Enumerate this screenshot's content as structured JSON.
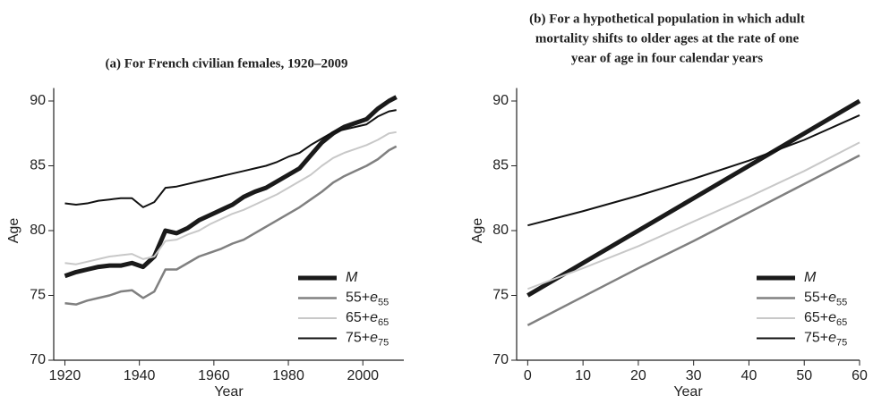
{
  "chart_data": [
    {
      "type": "line",
      "title": [
        "(a) For French civilian females, 1920–2009"
      ],
      "xlabel": "Year",
      "ylabel": "Age",
      "x": [
        1920,
        1923,
        1926,
        1929,
        1932,
        1935,
        1938,
        1941,
        1944,
        1947,
        1950,
        1953,
        1956,
        1959,
        1962,
        1965,
        1968,
        1971,
        1974,
        1977,
        1980,
        1983,
        1986,
        1989,
        1992,
        1995,
        1998,
        2001,
        2004,
        2007,
        2009
      ],
      "series": [
        {
          "name": "M",
          "color": "#1a1a1a",
          "values": [
            76.5,
            76.8,
            77.0,
            77.2,
            77.3,
            77.3,
            77.5,
            77.2,
            78.0,
            80.0,
            79.8,
            80.2,
            80.8,
            81.2,
            81.6,
            82.0,
            82.6,
            83.0,
            83.3,
            83.8,
            84.3,
            84.8,
            85.8,
            86.8,
            87.5,
            88.0,
            88.3,
            88.6,
            89.4,
            90.0,
            90.3
          ]
        },
        {
          "name": "55+e55",
          "color": "#808080",
          "values": [
            74.4,
            74.3,
            74.6,
            74.8,
            75.0,
            75.3,
            75.4,
            74.8,
            75.3,
            77.0,
            77.0,
            77.5,
            78.0,
            78.3,
            78.6,
            79.0,
            79.3,
            79.8,
            80.3,
            80.8,
            81.3,
            81.8,
            82.4,
            83.0,
            83.7,
            84.2,
            84.6,
            85.0,
            85.5,
            86.2,
            86.5
          ]
        },
        {
          "name": "65+e65",
          "color": "#c8c8c8",
          "values": [
            77.5,
            77.4,
            77.6,
            77.8,
            78.0,
            78.1,
            78.2,
            77.8,
            78.0,
            79.2,
            79.3,
            79.7,
            80.0,
            80.5,
            80.9,
            81.3,
            81.6,
            82.0,
            82.4,
            82.8,
            83.3,
            83.8,
            84.3,
            85.0,
            85.6,
            86.0,
            86.3,
            86.6,
            87.0,
            87.5,
            87.6
          ]
        },
        {
          "name": "75+e75",
          "color": "#111111",
          "values": [
            82.1,
            82.0,
            82.1,
            82.3,
            82.4,
            82.5,
            82.5,
            81.8,
            82.2,
            83.3,
            83.4,
            83.6,
            83.8,
            84.0,
            84.2,
            84.4,
            84.6,
            84.8,
            85.0,
            85.3,
            85.7,
            86.0,
            86.6,
            87.1,
            87.6,
            87.8,
            88.0,
            88.2,
            88.8,
            89.2,
            89.3
          ]
        }
      ],
      "xlim": [
        1917,
        2011
      ],
      "xticks": [
        1920,
        1940,
        1960,
        1980,
        2000
      ],
      "ylim": [
        70,
        91
      ],
      "yticks": [
        70,
        75,
        80,
        85,
        90
      ],
      "legend": "lower right"
    },
    {
      "type": "line",
      "title": [
        "(b) For a hypothetical population in which adult",
        "mortality shifts to older ages at the rate of one",
        "year of age in four calendar years"
      ],
      "xlabel": "Year",
      "ylabel": "Age",
      "x": [
        0,
        10,
        20,
        30,
        40,
        50,
        60
      ],
      "series": [
        {
          "name": "M",
          "color": "#1a1a1a",
          "values": [
            75,
            77.5,
            80,
            82.5,
            85,
            87.5,
            90
          ]
        },
        {
          "name": "55+e55",
          "color": "#808080",
          "values": [
            72.7,
            74.9,
            77.1,
            79.2,
            81.4,
            83.6,
            85.8
          ]
        },
        {
          "name": "65+e65",
          "color": "#c8c8c8",
          "values": [
            75.5,
            77.1,
            78.8,
            80.7,
            82.6,
            84.6,
            86.8
          ]
        },
        {
          "name": "75+e75",
          "color": "#111111",
          "values": [
            80.4,
            81.5,
            82.7,
            84.0,
            85.4,
            87.0,
            88.9
          ]
        }
      ],
      "xlim": [
        -2,
        60
      ],
      "xticks": [
        0,
        10,
        20,
        30,
        40,
        50,
        60
      ],
      "ylim": [
        70,
        91
      ],
      "yticks": [
        70,
        75,
        80,
        85,
        90
      ],
      "legend": "lower right"
    }
  ]
}
